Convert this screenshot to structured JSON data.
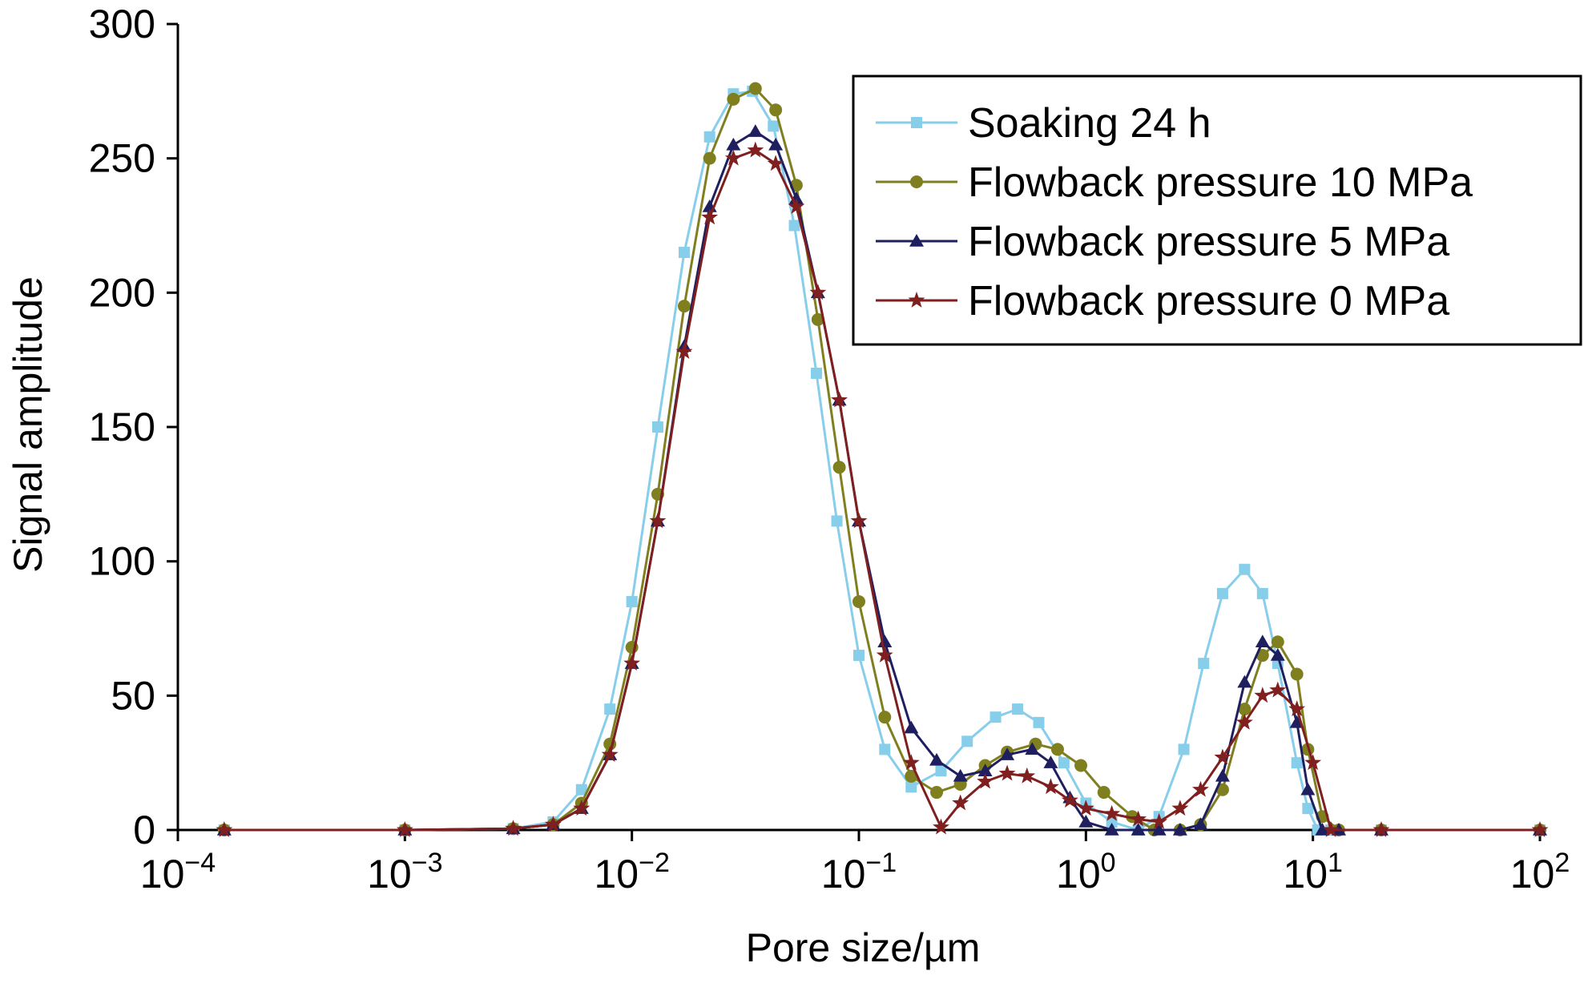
{
  "chart_data": {
    "type": "line",
    "title": "",
    "xlabel": "Pore size/µm",
    "ylabel": "Signal amplitude",
    "x_scale": "log",
    "xlim": [
      0.0001,
      100
    ],
    "ylim": [
      0,
      300
    ],
    "x_ticks": [
      {
        "base": "10",
        "exp": "−4"
      },
      {
        "base": "10",
        "exp": "−3"
      },
      {
        "base": "10",
        "exp": "−2"
      },
      {
        "base": "10",
        "exp": "−1"
      },
      {
        "base": "10",
        "exp": "0"
      },
      {
        "base": "10",
        "exp": "1"
      },
      {
        "base": "10",
        "exp": "2"
      }
    ],
    "y_ticks": [
      "0",
      "50",
      "100",
      "150",
      "200",
      "250",
      "300"
    ],
    "grid": false,
    "legend_position": "top-right",
    "series": [
      {
        "name": "Soaking 24 h",
        "color": "#87CEEB",
        "marker": "square",
        "x": [
          0.00016,
          0.001,
          0.003,
          0.0045,
          0.006,
          0.008,
          0.01,
          0.013,
          0.017,
          0.022,
          0.028,
          0.034,
          0.042,
          0.052,
          0.065,
          0.08,
          0.1,
          0.13,
          0.17,
          0.23,
          0.3,
          0.4,
          0.5,
          0.62,
          0.8,
          1.0,
          1.3,
          1.7,
          2.1,
          2.7,
          3.3,
          4.0,
          5.0,
          6.0,
          7.0,
          8.5,
          9.5,
          10.5,
          12,
          20,
          100
        ],
        "y": [
          0,
          0,
          0.5,
          3,
          15,
          45,
          85,
          150,
          215,
          258,
          274,
          275,
          262,
          225,
          170,
          115,
          65,
          30,
          16,
          22,
          33,
          42,
          45,
          40,
          25,
          10,
          3,
          0,
          5,
          30,
          62,
          88,
          97,
          88,
          62,
          25,
          8,
          0,
          0,
          0,
          0
        ]
      },
      {
        "name": "Flowback pressure 10 MPa",
        "color": "#7F7F1F",
        "marker": "circle",
        "x": [
          0.00016,
          0.001,
          0.003,
          0.0045,
          0.006,
          0.008,
          0.01,
          0.013,
          0.017,
          0.022,
          0.028,
          0.035,
          0.043,
          0.053,
          0.066,
          0.082,
          0.1,
          0.13,
          0.17,
          0.22,
          0.28,
          0.36,
          0.45,
          0.6,
          0.75,
          0.95,
          1.2,
          1.6,
          2.0,
          2.6,
          3.2,
          4.0,
          5.0,
          6.0,
          7.0,
          8.5,
          9.5,
          11,
          13,
          20,
          100
        ],
        "y": [
          0,
          0,
          0.5,
          2,
          10,
          32,
          68,
          125,
          195,
          250,
          272,
          276,
          268,
          240,
          190,
          135,
          85,
          42,
          20,
          14,
          17,
          24,
          29,
          32,
          30,
          24,
          14,
          5,
          0,
          0,
          2,
          15,
          45,
          65,
          70,
          58,
          30,
          5,
          0,
          0,
          0
        ]
      },
      {
        "name": "Flowback pressure 5 MPa",
        "color": "#1F1F5F",
        "marker": "triangle",
        "x": [
          0.00016,
          0.001,
          0.003,
          0.0045,
          0.006,
          0.008,
          0.01,
          0.013,
          0.017,
          0.022,
          0.028,
          0.035,
          0.043,
          0.053,
          0.066,
          0.082,
          0.1,
          0.13,
          0.17,
          0.22,
          0.28,
          0.36,
          0.45,
          0.58,
          0.7,
          0.85,
          1.0,
          1.3,
          1.7,
          2.1,
          2.6,
          3.2,
          4.0,
          5.0,
          6.0,
          7.0,
          8.5,
          9.5,
          11,
          13,
          20,
          100
        ],
        "y": [
          0,
          0,
          0.5,
          2,
          8,
          28,
          62,
          115,
          180,
          232,
          255,
          260,
          255,
          235,
          200,
          160,
          115,
          70,
          38,
          26,
          20,
          22,
          28,
          30,
          25,
          12,
          3,
          0,
          0,
          0,
          0,
          2,
          20,
          55,
          70,
          65,
          40,
          15,
          0,
          0,
          0,
          0
        ]
      },
      {
        "name": "Flowback pressure 0 MPa",
        "color": "#7F1F1F",
        "marker": "star",
        "x": [
          0.00016,
          0.001,
          0.003,
          0.0045,
          0.006,
          0.008,
          0.01,
          0.013,
          0.017,
          0.022,
          0.028,
          0.035,
          0.043,
          0.053,
          0.066,
          0.082,
          0.1,
          0.13,
          0.17,
          0.23,
          0.28,
          0.36,
          0.45,
          0.55,
          0.7,
          0.85,
          1.0,
          1.3,
          1.7,
          2.1,
          2.6,
          3.2,
          4.0,
          5.0,
          6.0,
          7.0,
          8.5,
          10,
          12,
          20,
          100
        ],
        "y": [
          0,
          0,
          0.5,
          2,
          8,
          28,
          62,
          115,
          178,
          228,
          250,
          253,
          248,
          232,
          200,
          160,
          115,
          65,
          25,
          1,
          10,
          18,
          21,
          20,
          16,
          11,
          8,
          6,
          4,
          3,
          8,
          15,
          27,
          40,
          50,
          52,
          45,
          25,
          0,
          0,
          0
        ]
      }
    ]
  }
}
